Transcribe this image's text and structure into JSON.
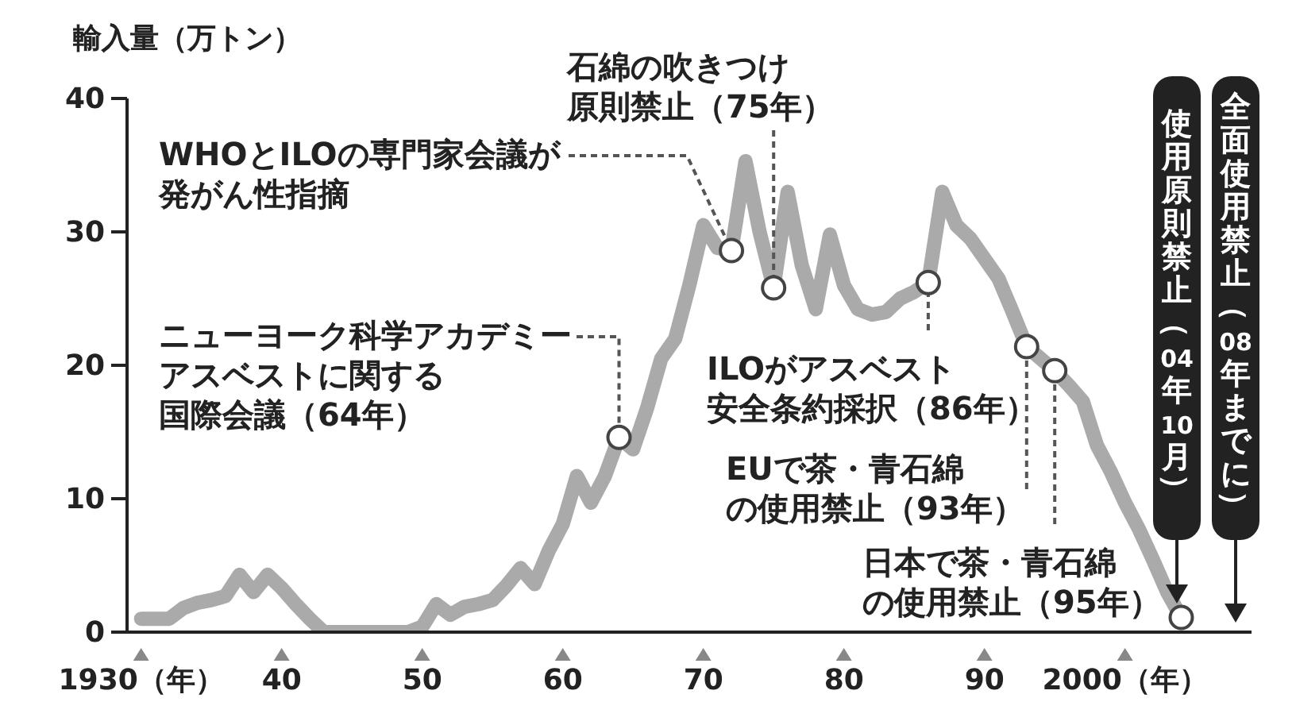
{
  "chart_data": {
    "type": "line",
    "ylabel": "輸入量（万トン）",
    "x": [
      1930,
      1931,
      1932,
      1933,
      1934,
      1935,
      1936,
      1937,
      1938,
      1939,
      1940,
      1941,
      1942,
      1943,
      1944,
      1945,
      1946,
      1947,
      1948,
      1949,
      1950,
      1951,
      1952,
      1953,
      1954,
      1955,
      1956,
      1957,
      1958,
      1959,
      1960,
      1961,
      1962,
      1963,
      1964,
      1965,
      1966,
      1967,
      1968,
      1969,
      1970,
      1971,
      1972,
      1973,
      1974,
      1975,
      1976,
      1977,
      1978,
      1979,
      1980,
      1981,
      1982,
      1983,
      1984,
      1985,
      1986,
      1987,
      1988,
      1989,
      1990,
      1991,
      1992,
      1993,
      1994,
      1995,
      1996,
      1997,
      1998,
      1999,
      2000,
      2001,
      2002,
      2003,
      2004
    ],
    "series": [
      {
        "color": "#aaaaaa",
        "values": [
          1.0,
          1.0,
          1.0,
          1.8,
          2.2,
          2.4,
          2.7,
          4.3,
          3.0,
          4.3,
          3.3,
          2.1,
          1.0,
          0,
          0,
          0,
          0,
          0,
          0,
          0,
          0.4,
          2.1,
          1.3,
          1.9,
          2.1,
          2.4,
          3.5,
          4.8,
          3.6,
          6.1,
          8.1,
          11.7,
          9.7,
          11.7,
          14.6,
          13.7,
          16.8,
          20.5,
          22,
          26,
          30.5,
          28.8,
          28.6,
          35.3,
          30,
          25.8,
          33,
          27.5,
          24.2,
          29.8,
          26,
          24.2,
          23.8,
          24,
          25,
          25.5,
          26.2,
          33,
          30.5,
          29.5,
          28,
          26.5,
          24,
          21.4,
          20.5,
          19.6,
          18.5,
          17.3,
          14,
          12,
          9.7,
          7.7,
          5.4,
          3,
          1.1
        ]
      }
    ],
    "xlim": [
      1929,
      2009
    ],
    "xticks": [
      {
        "value": 1930,
        "label": "1930（年）"
      },
      {
        "value": 1940,
        "label": "40"
      },
      {
        "value": 1950,
        "label": "50"
      },
      {
        "value": 1960,
        "label": "60"
      },
      {
        "value": 1970,
        "label": "70"
      },
      {
        "value": 1980,
        "label": "80"
      },
      {
        "value": 1990,
        "label": "90"
      },
      {
        "value": 2000,
        "label": "2000（年）"
      }
    ],
    "ylim": [
      0,
      40
    ],
    "yticks": [
      0,
      10,
      20,
      30,
      40
    ],
    "grid": false,
    "legend": false,
    "marker": "none",
    "line_style": "solid",
    "annotations": [
      {
        "text": "WHOとILOの専門家会議が発がん性指摘",
        "x": 1972,
        "y": 28.6
      },
      {
        "text": "石綿の吹きつけ原則禁止（75年）",
        "x": 1975,
        "y": 25.8
      },
      {
        "text": "ニューヨーク科学アカデミーアスベストに関する国際会議（64年）",
        "x": 1964,
        "y": 14.6
      },
      {
        "text": "ILOがアスベスト安全条約採択（86年）",
        "x": 1986,
        "y": 26.2
      },
      {
        "text": "EUで茶・青石綿の使用禁止（93年）",
        "x": 1993,
        "y": 21.4
      },
      {
        "text": "日本で茶・青石綿の使用禁止（95年）",
        "x": 1995,
        "y": 19.6
      },
      "使用原則禁止（04年10月）",
      "全面使用禁止（08年までに）"
    ]
  }
}
